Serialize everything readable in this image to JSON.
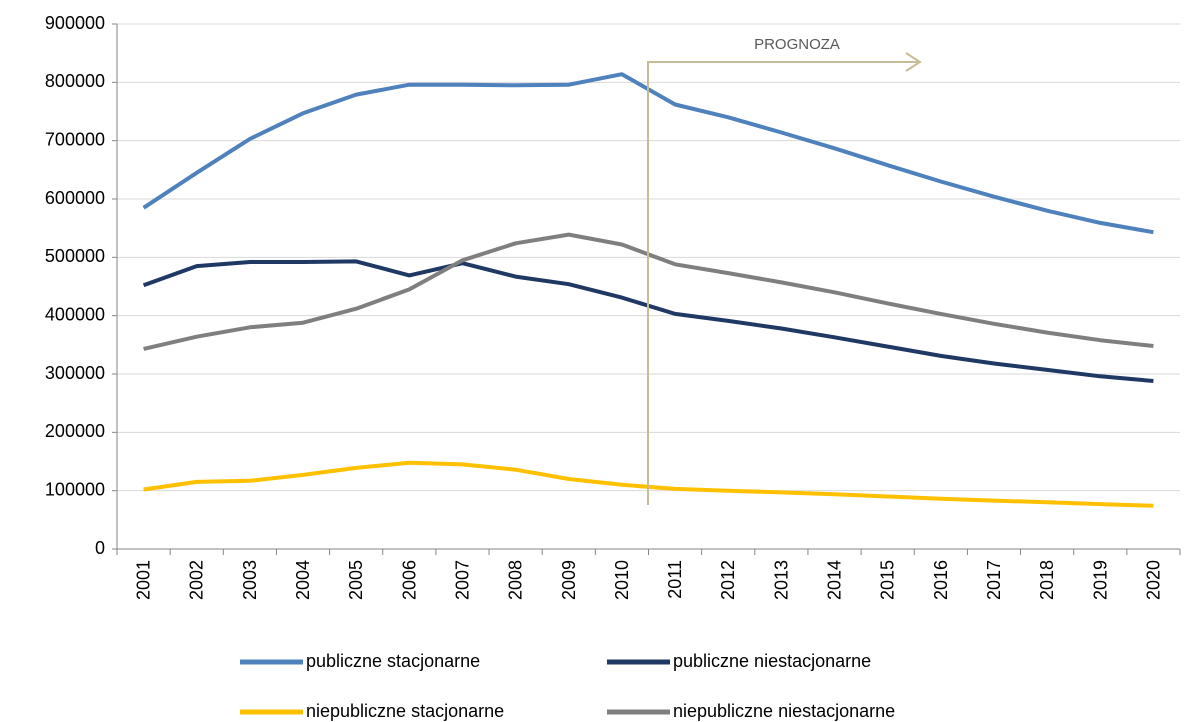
{
  "chart_data": {
    "type": "line",
    "categories": [
      "2001",
      "2002",
      "2003",
      "2004",
      "2005",
      "2006",
      "2007",
      "2008",
      "2009",
      "2010",
      "2011",
      "2012",
      "2013",
      "2014",
      "2015",
      "2016",
      "2017",
      "2018",
      "2019",
      "2020"
    ],
    "series": [
      {
        "name": "publiczne stacjonarne",
        "color": "#4f81bd",
        "values": [
          585000,
          645000,
          703000,
          747000,
          779000,
          796000,
          796000,
          795000,
          796000,
          814000,
          762000,
          740000,
          714000,
          687000,
          658000,
          630000,
          604000,
          580000,
          559000,
          543000
        ]
      },
      {
        "name": "publiczne niestacjonarne",
        "color": "#1f3864",
        "values": [
          452000,
          485000,
          492000,
          492000,
          493000,
          469000,
          490000,
          467000,
          454000,
          431000,
          403000,
          391000,
          378000,
          363000,
          347000,
          331000,
          318000,
          307000,
          296000,
          288000
        ]
      },
      {
        "name": "niepubliczne stacjonarne",
        "color": "#ffc000",
        "values": [
          102000,
          115000,
          117000,
          127000,
          139000,
          148000,
          145000,
          136000,
          120000,
          110000,
          103000,
          100000,
          97000,
          94000,
          90000,
          86000,
          83000,
          80000,
          77000,
          74000
        ]
      },
      {
        "name": "niepubliczne niestacjonarne",
        "color": "#7f7f7f",
        "values": [
          343000,
          364000,
          380000,
          388000,
          412000,
          445000,
          495000,
          524000,
          539000,
          522000,
          488000,
          473000,
          457000,
          440000,
          421000,
          403000,
          386000,
          371000,
          358000,
          348000
        ]
      }
    ],
    "annotation": "PROGNOZA",
    "ylim": [
      0,
      900000
    ],
    "yticks": [
      0,
      100000,
      200000,
      300000,
      400000,
      500000,
      600000,
      700000,
      800000,
      900000
    ],
    "grid": true
  }
}
